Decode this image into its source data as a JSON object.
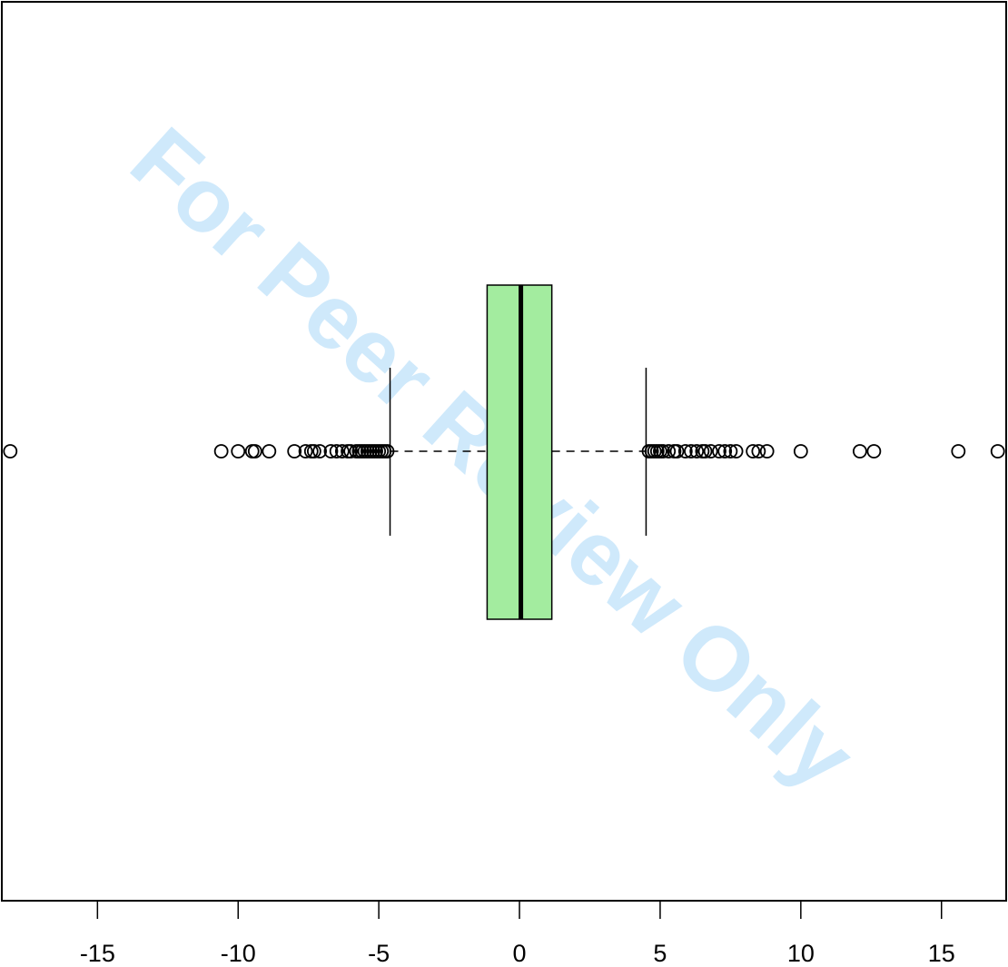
{
  "chart_data": {
    "type": "boxplot",
    "orientation": "horizontal",
    "title": "",
    "xlabel": "",
    "ylabel": "",
    "xlim": [
      -18.4,
      17.3
    ],
    "x_ticks": [
      -15,
      -10,
      -5,
      0,
      5,
      10,
      15
    ],
    "x_tick_labels": [
      "-15",
      "-10",
      "-5",
      "0",
      "5",
      "10",
      "15"
    ],
    "box": {
      "q1": -1.15,
      "median": 0.05,
      "q3": 1.15,
      "whisker_low": -4.6,
      "whisker_high": 4.5,
      "fill": "#a3ec9f"
    },
    "outliers": [
      -18.1,
      -10.6,
      -10.0,
      -9.5,
      -9.4,
      -8.9,
      -8.0,
      -7.6,
      -7.4,
      -7.3,
      -7.1,
      -6.7,
      -6.5,
      -6.3,
      -6.1,
      -6.0,
      -5.8,
      -5.7,
      -5.6,
      -5.5,
      -5.4,
      -5.3,
      -5.2,
      -5.1,
      -5.0,
      -4.9,
      -4.8,
      -4.7,
      4.6,
      4.7,
      4.8,
      4.9,
      5.0,
      5.1,
      5.3,
      5.5,
      5.6,
      5.9,
      6.1,
      6.3,
      6.5,
      6.6,
      6.8,
      7.1,
      7.3,
      7.5,
      7.7,
      8.3,
      8.5,
      8.8,
      10.0,
      12.1,
      12.6,
      15.6,
      17.0
    ],
    "grid": false,
    "legend": "none"
  },
  "watermark": {
    "text": "For Peer Review Only",
    "color": "#cfe9fb"
  }
}
